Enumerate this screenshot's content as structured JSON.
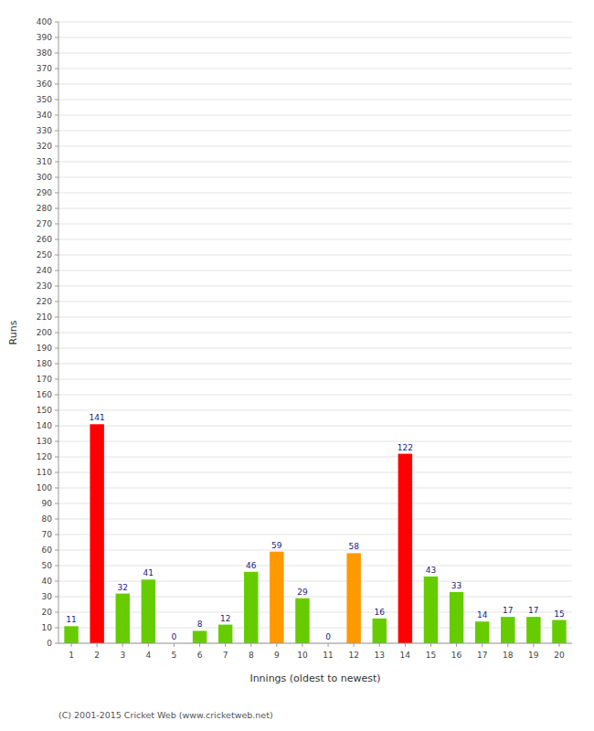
{
  "chart_data": {
    "type": "bar",
    "xlabel": "Innings (oldest to newest)",
    "ylabel": "Runs",
    "footer": "(C) 2001-2015 Cricket Web (www.cricketweb.net)",
    "categories": [
      1,
      2,
      3,
      4,
      5,
      6,
      7,
      8,
      9,
      10,
      11,
      12,
      13,
      14,
      15,
      16,
      17,
      18,
      19,
      20
    ],
    "values": [
      11,
      141,
      32,
      41,
      0,
      8,
      12,
      46,
      59,
      29,
      0,
      58,
      16,
      122,
      43,
      33,
      14,
      17,
      17,
      15
    ],
    "colors": [
      "#66cc00",
      "#ff0000",
      "#66cc00",
      "#66cc00",
      "#66cc00",
      "#66cc00",
      "#66cc00",
      "#66cc00",
      "#ff9900",
      "#66cc00",
      "#66cc00",
      "#ff9900",
      "#66cc00",
      "#ff0000",
      "#66cc00",
      "#66cc00",
      "#66cc00",
      "#66cc00",
      "#66cc00",
      "#66cc00"
    ],
    "ylim": [
      0,
      400
    ],
    "yticks": [
      0,
      10,
      20,
      30,
      40,
      50,
      60,
      70,
      80,
      90,
      100,
      110,
      120,
      130,
      140,
      150,
      160,
      170,
      180,
      190,
      200,
      210,
      220,
      230,
      240,
      250,
      260,
      270,
      280,
      290,
      300,
      310,
      320,
      330,
      340,
      350,
      360,
      370,
      380,
      390,
      400
    ],
    "grid": true,
    "data_labels": true
  }
}
